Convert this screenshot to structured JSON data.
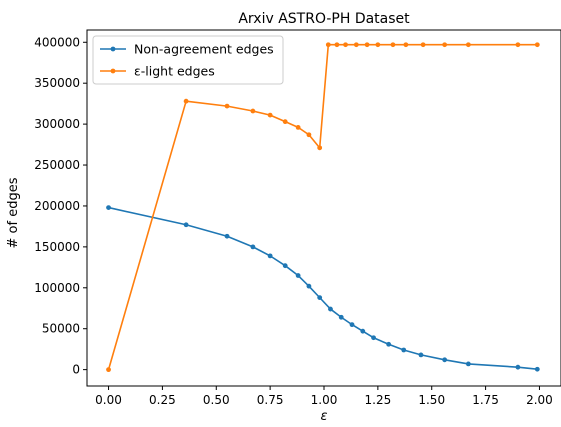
{
  "chart_data": {
    "type": "line",
    "title": "Arxiv ASTRO-PH Dataset",
    "xlabel": "ε",
    "ylabel": "# of edges",
    "xlim": [
      -0.1,
      2.1
    ],
    "ylim": [
      -20000,
      415000
    ],
    "xticks": [
      0.0,
      0.25,
      0.5,
      0.75,
      1.0,
      1.25,
      1.5,
      1.75,
      2.0
    ],
    "xtick_labels": [
      "0.00",
      "0.25",
      "0.50",
      "0.75",
      "1.00",
      "1.25",
      "1.50",
      "1.75",
      "2.00"
    ],
    "yticks": [
      0,
      50000,
      100000,
      150000,
      200000,
      250000,
      300000,
      350000,
      400000
    ],
    "ytick_labels": [
      "0",
      "50000",
      "100000",
      "150000",
      "200000",
      "250000",
      "300000",
      "350000",
      "400000"
    ],
    "grid": false,
    "legend_position": "top-left",
    "series": [
      {
        "name": "Non-agreement edges",
        "color": "#1f77b4",
        "x": [
          0.0,
          0.36,
          0.55,
          0.67,
          0.75,
          0.82,
          0.88,
          0.93,
          0.98,
          1.03,
          1.08,
          1.13,
          1.18,
          1.23,
          1.3,
          1.37,
          1.45,
          1.56,
          1.67,
          1.9,
          1.99
        ],
        "y": [
          198000,
          177000,
          163000,
          150000,
          139000,
          127000,
          115000,
          102000,
          88000,
          74000,
          64000,
          55000,
          47000,
          39000,
          31000,
          24000,
          18000,
          12000,
          7000,
          3000,
          500
        ]
      },
      {
        "name": "ε-light edges",
        "color": "#ff7f0e",
        "x": [
          0.0,
          0.36,
          0.55,
          0.67,
          0.75,
          0.82,
          0.88,
          0.93,
          0.98,
          1.02,
          1.06,
          1.1,
          1.15,
          1.2,
          1.25,
          1.32,
          1.38,
          1.46,
          1.56,
          1.67,
          1.9,
          1.99
        ],
        "y": [
          0,
          328000,
          322000,
          316000,
          311000,
          303000,
          296000,
          287000,
          271000,
          397000,
          397000,
          397000,
          397000,
          397000,
          397000,
          397000,
          397000,
          397000,
          397000,
          397000,
          397000,
          397000
        ]
      }
    ]
  }
}
